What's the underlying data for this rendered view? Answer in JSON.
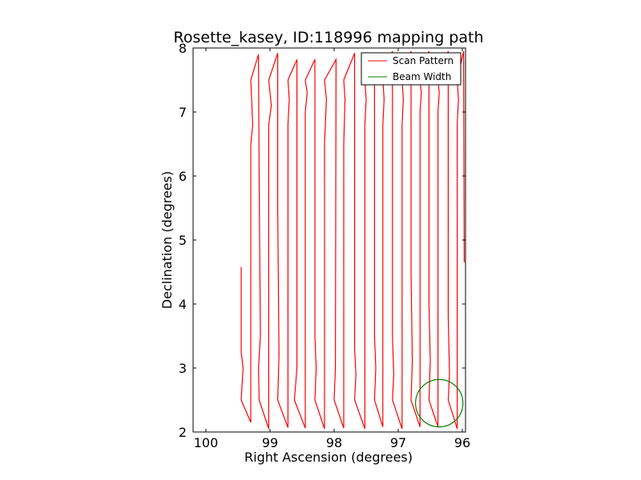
{
  "chart_data": {
    "type": "line",
    "title": "Rosette_kasey, ID:118996 mapping path",
    "xlabel": "Right Ascension (degrees)",
    "ylabel": "Declination (degrees)",
    "xlim": [
      100.2,
      95.95
    ],
    "ylim": [
      2,
      8
    ],
    "x_reversed": true,
    "xticks": [
      100,
      99,
      98,
      97,
      96
    ],
    "xtick_labels": [
      "100",
      "99",
      "98",
      "97",
      "96"
    ],
    "yticks": [
      2,
      3,
      4,
      5,
      6,
      7,
      8
    ],
    "ytick_labels": [
      "2",
      "3",
      "4",
      "5",
      "6",
      "7",
      "8"
    ],
    "legend": {
      "placement": "top-right",
      "entries": [
        {
          "label": "Scan Pattern",
          "color": "#ff0000"
        },
        {
          "label": "Beam Width",
          "color": "#008000"
        }
      ]
    },
    "series": [
      {
        "name": "Scan Pattern",
        "color": "#ff0000",
        "points": [
          [
            99.45,
            4.58
          ],
          [
            99.45,
            3.25
          ],
          [
            99.42,
            3.0
          ],
          [
            99.45,
            2.5
          ],
          [
            99.3,
            2.15
          ],
          [
            99.3,
            6.5
          ],
          [
            99.27,
            6.8
          ],
          [
            99.3,
            7.5
          ],
          [
            99.18,
            7.9
          ],
          [
            99.17,
            6.0
          ],
          [
            99.15,
            3.5
          ],
          [
            99.18,
            3.0
          ],
          [
            99.17,
            2.5
          ],
          [
            99.02,
            2.05
          ],
          [
            99.02,
            6.8
          ],
          [
            98.98,
            7.1
          ],
          [
            99.02,
            7.5
          ],
          [
            98.88,
            7.92
          ],
          [
            98.88,
            5.5
          ],
          [
            98.86,
            3.2
          ],
          [
            98.88,
            2.5
          ],
          [
            98.72,
            2.07
          ],
          [
            98.72,
            6.8
          ],
          [
            98.7,
            7.2
          ],
          [
            98.72,
            7.5
          ],
          [
            98.58,
            7.82
          ],
          [
            98.58,
            3.0
          ],
          [
            98.62,
            2.5
          ],
          [
            98.45,
            2.06
          ],
          [
            98.45,
            7.0
          ],
          [
            98.42,
            7.3
          ],
          [
            98.45,
            7.5
          ],
          [
            98.3,
            7.82
          ],
          [
            98.3,
            3.5
          ],
          [
            98.28,
            3.0
          ],
          [
            98.3,
            2.5
          ],
          [
            98.15,
            2.05
          ],
          [
            98.15,
            6.5
          ],
          [
            98.12,
            7.2
          ],
          [
            98.15,
            7.5
          ],
          [
            97.97,
            7.82
          ],
          [
            97.98,
            3.0
          ],
          [
            98.0,
            2.5
          ],
          [
            97.85,
            2.06
          ],
          [
            97.85,
            6.5
          ],
          [
            97.83,
            7.2
          ],
          [
            97.85,
            7.5
          ],
          [
            97.68,
            7.92
          ],
          [
            97.68,
            3.3
          ],
          [
            97.66,
            2.9
          ],
          [
            97.68,
            2.5
          ],
          [
            97.52,
            2.05
          ],
          [
            97.52,
            6.8
          ],
          [
            97.5,
            7.2
          ],
          [
            97.52,
            7.5
          ],
          [
            97.37,
            7.85
          ],
          [
            97.37,
            3.5
          ],
          [
            97.35,
            3.0
          ],
          [
            97.37,
            2.5
          ],
          [
            97.24,
            2.08
          ],
          [
            97.24,
            6.8
          ],
          [
            97.22,
            7.2
          ],
          [
            97.24,
            7.5
          ],
          [
            97.09,
            7.95
          ],
          [
            97.09,
            3.5
          ],
          [
            97.07,
            2.9
          ],
          [
            97.09,
            2.5
          ],
          [
            96.94,
            2.05
          ],
          [
            96.94,
            6.8
          ],
          [
            96.92,
            7.2
          ],
          [
            96.94,
            7.5
          ],
          [
            96.8,
            7.95
          ],
          [
            96.8,
            4.5
          ],
          [
            96.78,
            3.1
          ],
          [
            96.8,
            2.5
          ],
          [
            96.66,
            2.08
          ],
          [
            96.66,
            7.0
          ],
          [
            96.64,
            7.3
          ],
          [
            96.66,
            7.5
          ],
          [
            96.52,
            7.95
          ],
          [
            96.52,
            4.0
          ],
          [
            96.5,
            3.1
          ],
          [
            96.52,
            2.5
          ],
          [
            96.38,
            2.08
          ],
          [
            96.38,
            7.0
          ],
          [
            96.36,
            7.3
          ],
          [
            96.38,
            7.5
          ],
          [
            96.22,
            7.95
          ],
          [
            96.22,
            3.8
          ],
          [
            96.2,
            2.9
          ],
          [
            96.22,
            2.5
          ],
          [
            96.08,
            2.05
          ],
          [
            96.08,
            6.8
          ],
          [
            96.06,
            7.2
          ],
          [
            96.08,
            7.5
          ],
          [
            95.98,
            7.95
          ],
          [
            95.97,
            4.65
          ]
        ]
      },
      {
        "name": "Beam Width",
        "color": "#008000",
        "shape": "circle",
        "center": [
          96.36,
          2.45
        ],
        "radius_deg": 0.37
      }
    ]
  }
}
